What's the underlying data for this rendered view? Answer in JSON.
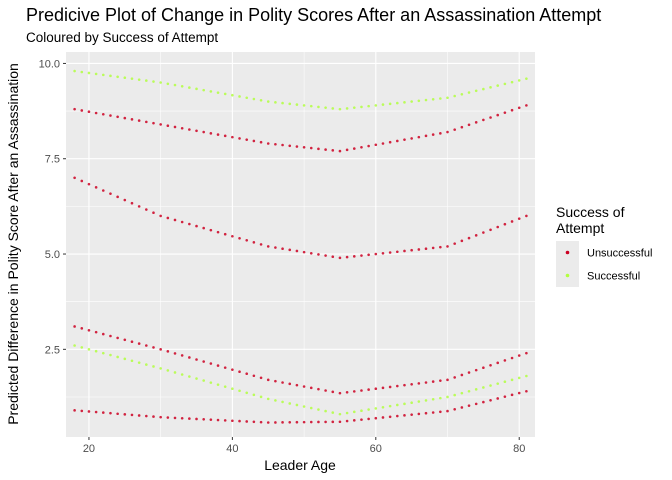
{
  "chart_data": {
    "type": "scatter",
    "title": "Predicive Plot of Change in Polity Scores After an Assassination Attempt",
    "subtitle": "Coloured by Success of Attempt",
    "xlabel": "Leader Age",
    "ylabel": "Predicted Difference in Polity Score After an Assassination",
    "xlim": [
      16.8,
      82.2
    ],
    "ylim": [
      0.2,
      10.3
    ],
    "x_ticks": [
      20,
      40,
      60,
      80
    ],
    "x_tick_labels": [
      "20",
      "40",
      "60",
      "80"
    ],
    "y_ticks": [
      2.5,
      5.0,
      7.5,
      10.0
    ],
    "y_tick_labels": [
      "2.5",
      "5.0",
      "7.5",
      "10.0"
    ],
    "grid": true,
    "legend": {
      "title_lines": [
        "Success of",
        "Attempt"
      ],
      "position": "right"
    },
    "x_range": [
      18,
      81
    ],
    "series": [
      {
        "name": "Unsuccessful",
        "color": "#cc0022",
        "curves": [
          {
            "x": [
              18,
              30,
              45,
              55,
              70,
              81
            ],
            "y": [
              0.9,
              0.72,
              0.58,
              0.6,
              0.88,
              1.4
            ]
          },
          {
            "x": [
              18,
              30,
              45,
              55,
              70,
              81
            ],
            "y": [
              3.1,
              2.5,
              1.7,
              1.35,
              1.7,
              2.4
            ]
          },
          {
            "x": [
              18,
              30,
              45,
              55,
              70,
              81
            ],
            "y": [
              7.0,
              6.0,
              5.2,
              4.9,
              5.2,
              6.0
            ]
          },
          {
            "x": [
              18,
              30,
              45,
              55,
              70,
              81
            ],
            "y": [
              8.8,
              8.4,
              7.9,
              7.7,
              8.2,
              8.9
            ]
          }
        ]
      },
      {
        "name": "Successful",
        "color": "#b2ff40",
        "curves": [
          {
            "x": [
              18,
              30,
              45,
              55,
              70,
              81
            ],
            "y": [
              2.6,
              2.0,
              1.2,
              0.8,
              1.25,
              1.8
            ]
          },
          {
            "x": [
              18,
              30,
              45,
              55,
              70,
              81
            ],
            "y": [
              9.8,
              9.5,
              9.0,
              8.8,
              9.1,
              9.6
            ]
          }
        ]
      }
    ]
  }
}
